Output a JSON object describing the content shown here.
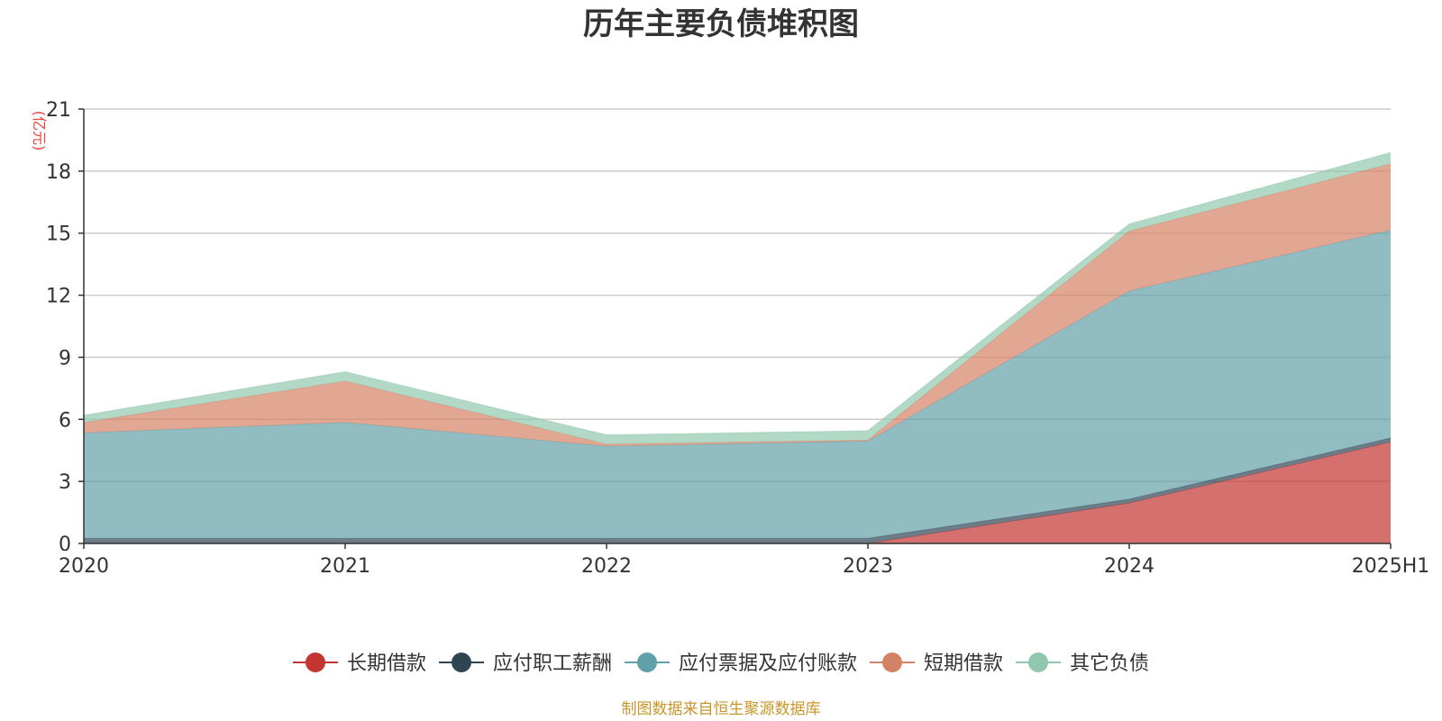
{
  "chart_data": {
    "type": "area",
    "stacked": true,
    "title": "历年主要负债堆积图",
    "unit_label": "(亿元)",
    "x": [
      "2020",
      "2021",
      "2022",
      "2023",
      "2024",
      "2025H1"
    ],
    "ylim": [
      0,
      21
    ],
    "yticks": [
      0,
      3,
      6,
      9,
      12,
      15,
      18,
      21
    ],
    "grid": true,
    "legend_position": "bottom",
    "series": [
      {
        "name": "长期借款",
        "color": "#c23531",
        "values": [
          0,
          0,
          0,
          0,
          1.95,
          4.9
        ]
      },
      {
        "name": "应付职工薪酬",
        "color": "#2f4554",
        "values": [
          0.25,
          0.25,
          0.25,
          0.25,
          0.2,
          0.2
        ]
      },
      {
        "name": "应付票据及应付账款",
        "color": "#61a0a8",
        "values": [
          5.1,
          5.6,
          4.45,
          4.7,
          10.05,
          10.05
        ]
      },
      {
        "name": "短期借款",
        "color": "#d48265",
        "values": [
          0.5,
          2.0,
          0.1,
          0.05,
          2.9,
          3.2
        ]
      },
      {
        "name": "其它负债",
        "color": "#91c7ae",
        "values": [
          0.35,
          0.45,
          0.45,
          0.45,
          0.35,
          0.55
        ]
      }
    ]
  },
  "footer": {
    "source_text": "制图数据来自恒生聚源数据库",
    "source_color": "#c9962a"
  }
}
